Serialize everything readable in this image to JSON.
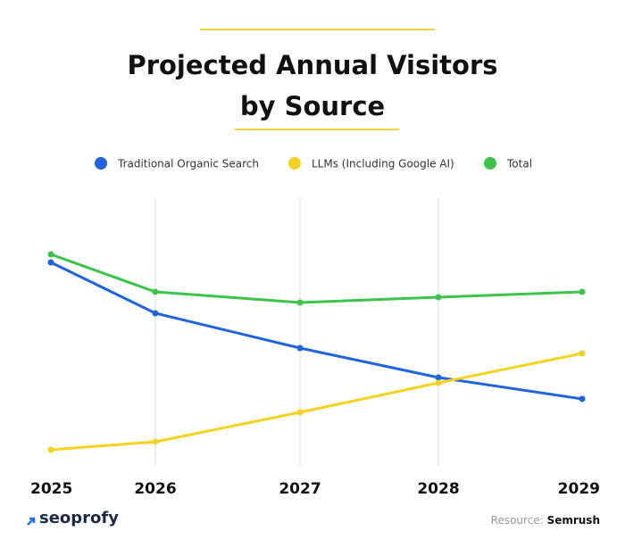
{
  "chart_data": {
    "type": "line",
    "title": "Projected Annual Visitors by Source",
    "categories": [
      "2025",
      "2026",
      "2027",
      "2028",
      "2029"
    ],
    "series": [
      {
        "name": "Traditional Organic Search",
        "color": "#1f64dd",
        "values": [
          76,
          57,
          44,
          33,
          25
        ]
      },
      {
        "name": "LLMs (Including Google AI)",
        "color": "#f6d21f",
        "values": [
          6,
          9,
          20,
          31,
          42
        ]
      },
      {
        "name": "Total",
        "color": "#3cc34a",
        "values": [
          79,
          65,
          61,
          63,
          65
        ]
      }
    ],
    "ylim": [
      0,
      100
    ],
    "grid": true
  },
  "brand": "seoprofy",
  "source_label": "Resource:",
  "source": "Semrush"
}
